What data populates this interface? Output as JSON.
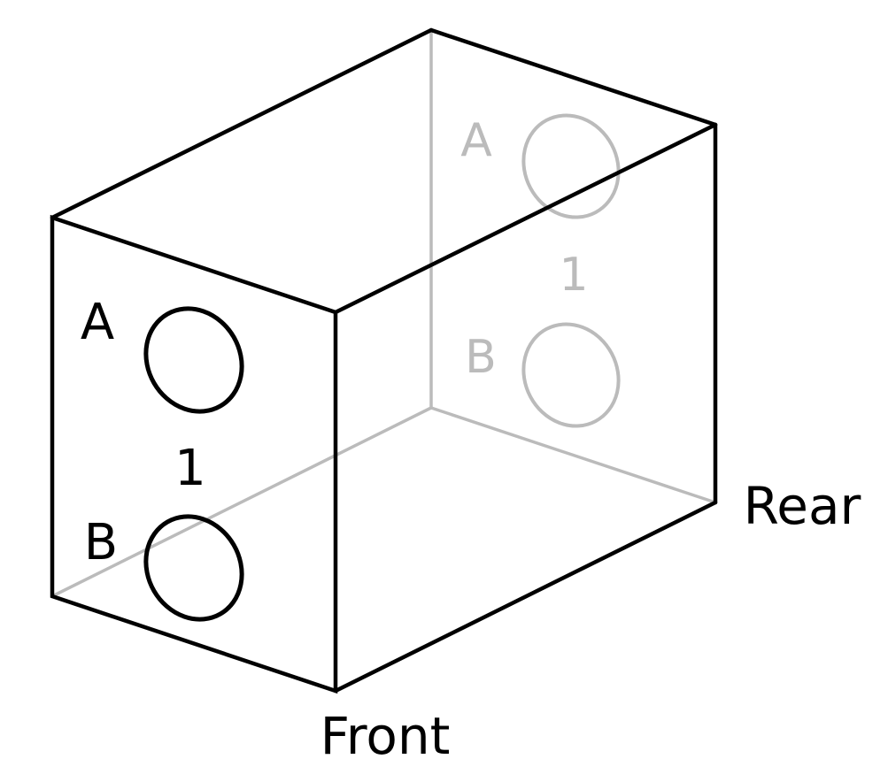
{
  "colors": {
    "front": "#000000",
    "rear": "#bbbbbb",
    "background": "#ffffff"
  },
  "faces": {
    "front": {
      "label": "Front",
      "port_a": "A",
      "port_b": "B",
      "number": "1"
    },
    "rear": {
      "label": "Rear",
      "port_a": "A",
      "port_b": "B",
      "number": "1"
    }
  }
}
